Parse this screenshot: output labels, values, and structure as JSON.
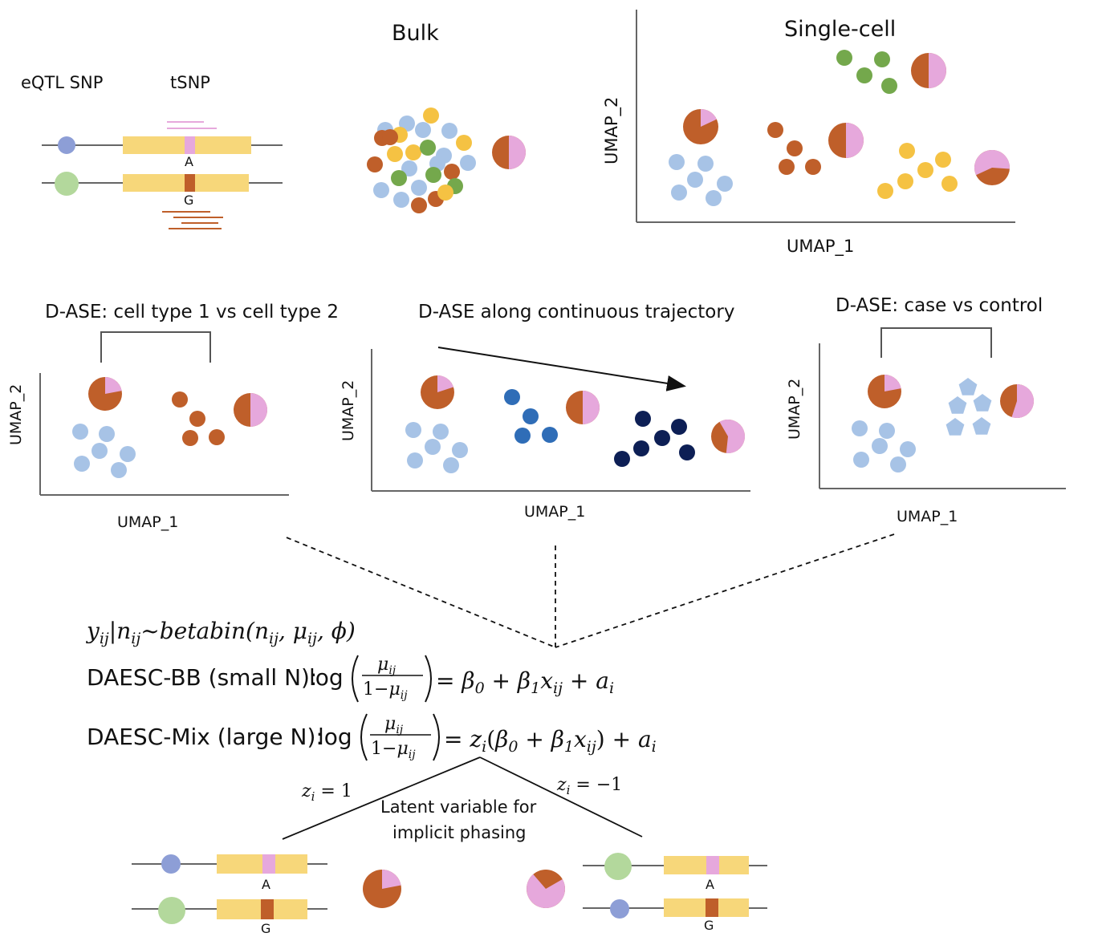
{
  "top": {
    "eqtl_label": "eQTL SNP",
    "tsnp_label": "tSNP",
    "allele_a": "A",
    "allele_g": "G",
    "bulk_title": "Bulk",
    "sc_title": "Single-cell",
    "umap1": "UMAP_1",
    "umap2": "UMAP_2"
  },
  "panels": {
    "celltype_title": "D-ASE: cell type 1 vs cell type 2",
    "trajectory_title": "D-ASE along continuous trajectory",
    "casecontrol_title": "D-ASE: case vs control",
    "umap1": "UMAP_1",
    "umap2": "UMAP_2"
  },
  "model": {
    "likelihood": "y_ij | n_ij ~ betabin(n_ij, μ_ij, φ)",
    "bb_prefix": "DAESC-BB (small N):",
    "mix_prefix": "DAESC-Mix (large N):",
    "log": "log",
    "z_pos": "z_i = 1",
    "z_neg": "z_i = −1",
    "latent_line1": "Latent variable for",
    "latent_line2": "implicit phasing"
  },
  "bottom": {
    "allele_a": "A",
    "allele_g": "G"
  },
  "colors": {
    "light_blue": "#a7c3e6",
    "brown": "#bf5f2a",
    "yellow": "#f5c243",
    "green": "#74a84c",
    "pink": "#e6a8dc",
    "mid_blue": "#2f6db7",
    "navy": "#0d1f55",
    "gene_bar": "#f7d77a",
    "eqtl_blue": "#8d9ed6",
    "eqtl_green": "#b3d89c"
  }
}
